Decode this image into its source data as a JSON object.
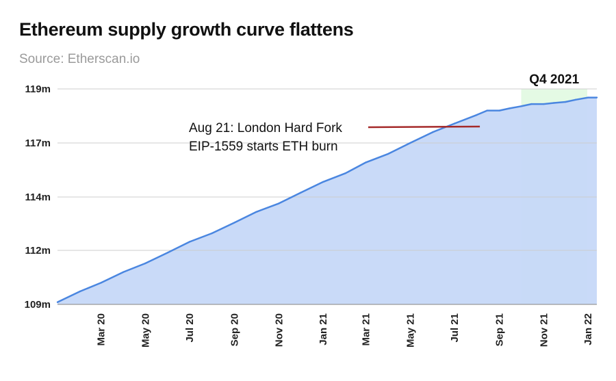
{
  "header": {
    "title": "Ethereum supply growth curve flattens",
    "subtitle": "Source: Etherscan.io"
  },
  "colors": {
    "line": "#4a86e0",
    "area": "#c6d8f8",
    "highlight": "#b3f0b3",
    "annotation_line": "#a52a2a",
    "grid": "#cccccc"
  },
  "chart_data": {
    "type": "area",
    "title": "Ethereum supply growth curve flattens",
    "subtitle": "Source: Etherscan.io",
    "xlabel": "",
    "ylabel": "",
    "x_tick_labels": [
      "Mar 20",
      "May 20",
      "Jul 20",
      "Sep 20",
      "Nov 20",
      "Jan 21",
      "Mar 21",
      "May 21",
      "Jul 21",
      "Sep 21",
      "Nov 21",
      "Jan 22"
    ],
    "y_tick_labels": [
      "109m",
      "112m",
      "114m",
      "117m",
      "119m"
    ],
    "ylim_labels": [
      "109m",
      "119m"
    ],
    "grid": true,
    "series": [
      {
        "x": [
          "2020-01-01",
          "2020-02-01",
          "2020-03-01",
          "2020-04-01",
          "2020-05-01",
          "2020-06-01",
          "2020-07-01",
          "2020-08-01",
          "2020-09-01",
          "2020-10-01",
          "2020-11-01",
          "2020-12-01",
          "2021-01-01",
          "2021-02-01",
          "2021-03-01",
          "2021-04-01",
          "2021-05-01",
          "2021-06-01",
          "2021-07-01",
          "2021-08-01",
          "2021-08-15",
          "2021-09-01",
          "2021-09-15",
          "2021-10-01",
          "2021-10-15",
          "2021-11-01",
          "2021-11-15",
          "2021-12-01",
          "2021-12-15",
          "2022-01-01",
          "2022-01-15"
        ],
        "values": [
          109.1,
          109.6,
          110.0,
          110.5,
          110.9,
          111.4,
          111.9,
          112.3,
          112.8,
          113.3,
          113.7,
          114.2,
          114.7,
          115.1,
          115.6,
          116.0,
          116.5,
          117.0,
          117.4,
          117.8,
          118.0,
          118.0,
          118.1,
          118.2,
          118.3,
          118.3,
          118.35,
          118.4,
          118.5,
          118.6,
          118.6
        ]
      }
    ],
    "highlight_region": {
      "label": "Q4 2021",
      "x_start": "2021-10-01",
      "x_end": "2021-12-31"
    },
    "annotations": [
      {
        "text_lines": [
          "Aug 21: London Hard Fork",
          "EIP-1559 starts ETH burn"
        ],
        "date": "2021-08-05",
        "value": 117.8
      }
    ]
  }
}
